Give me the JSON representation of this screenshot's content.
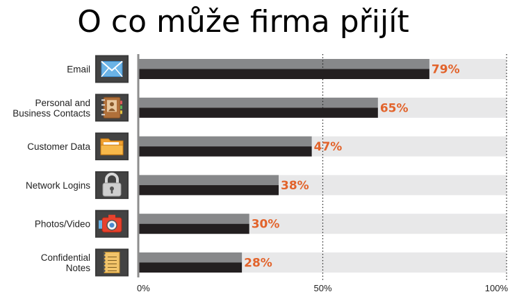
{
  "title": "O co může firma přijít",
  "chart_data": {
    "type": "bar",
    "orientation": "horizontal",
    "title": "O co může firma přijít",
    "categories": [
      [
        "Email"
      ],
      [
        "Personal and",
        "Business Contacts"
      ],
      [
        "Customer Data"
      ],
      [
        "Network Logins"
      ],
      [
        "Photos/Video"
      ],
      [
        "Confidential",
        "Notes"
      ]
    ],
    "values": [
      79,
      65,
      47,
      38,
      30,
      28
    ],
    "value_labels": [
      "79%",
      "65%",
      "47%",
      "38%",
      "30%",
      "28%"
    ],
    "icons": [
      "envelope-icon",
      "address-book-icon",
      "folder-icon",
      "padlock-icon",
      "camera-icon",
      "notepad-icon"
    ],
    "xlim": [
      0,
      100
    ],
    "ticks": [
      {
        "value": 0,
        "label": "0%"
      },
      {
        "value": 50,
        "label": "50%"
      },
      {
        "value": 100,
        "label": "100%"
      }
    ],
    "gridlines": [
      50,
      100
    ],
    "grid": "dotted",
    "legend": "none",
    "colors": {
      "bar_top": "#87888a",
      "bar_bottom": "#231f20",
      "track": "#e8e8e9",
      "value_label": "#e2632b",
      "axis": "#8e8e8e",
      "icon_tile": "#3a3a3a"
    }
  }
}
